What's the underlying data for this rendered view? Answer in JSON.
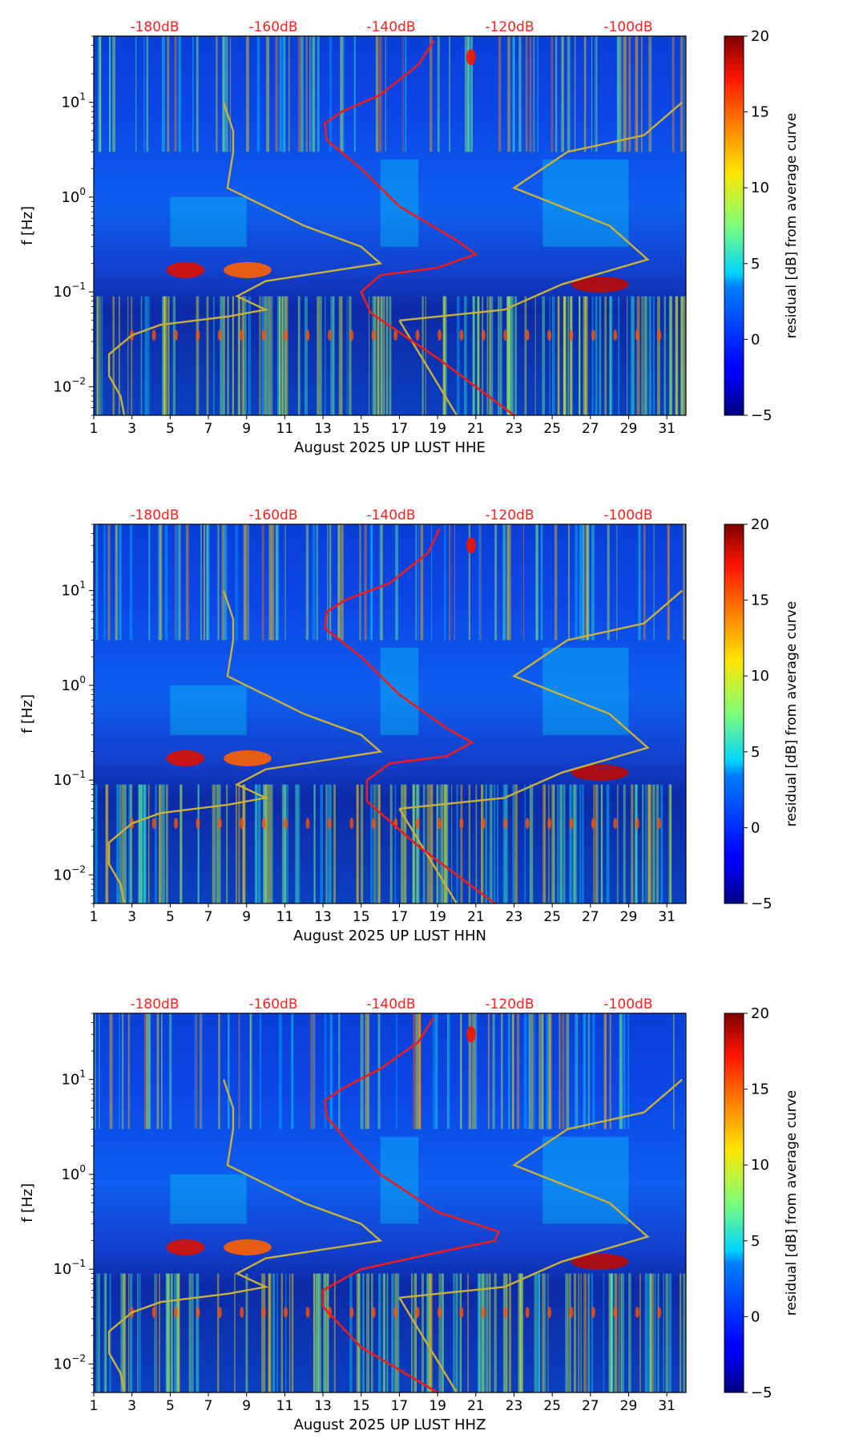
{
  "chart_data": [
    {
      "type": "heatmap",
      "xlabel": "August 2025 UP LUST  HHE",
      "ylabel": "f [Hz]",
      "x_ticks": [
        "1",
        "3",
        "5",
        "7",
        "9",
        "11",
        "13",
        "15",
        "17",
        "19",
        "21",
        "23",
        "25",
        "27",
        "29",
        "31"
      ],
      "xlim": [
        1,
        32
      ],
      "ylim": [
        0.005,
        50
      ],
      "y_ticks": [
        {
          "value": 0.01,
          "base": "10",
          "exp": "−2"
        },
        {
          "value": 0.1,
          "base": "10",
          "exp": "−1"
        },
        {
          "value": 1,
          "base": "10",
          "exp": "0"
        },
        {
          "value": 10,
          "base": "10",
          "exp": "1"
        }
      ],
      "top_ticks": [
        "-180dB",
        "-160dB",
        "-140dB",
        "-120dB",
        "-100dB"
      ],
      "colorbar": {
        "label": "residual [dB] from average curve",
        "min": -5,
        "max": 20,
        "ticks": [
          "20",
          "15",
          "10",
          "5",
          "0",
          "−5"
        ]
      },
      "red_curve": {
        "name": "average noise level (dB scale)",
        "points": [
          [
            23,
            0.005
          ],
          [
            19,
            0.02
          ],
          [
            15.5,
            0.06
          ],
          [
            15,
            0.1
          ],
          [
            16,
            0.15
          ],
          [
            19,
            0.18
          ],
          [
            21,
            0.25
          ],
          [
            20,
            0.35
          ],
          [
            17,
            0.8
          ],
          [
            15,
            2
          ],
          [
            13.2,
            4
          ],
          [
            13.1,
            6
          ],
          [
            14,
            8
          ],
          [
            16,
            12
          ],
          [
            18,
            25
          ],
          [
            18.8,
            45
          ]
        ]
      },
      "gold_curve": {
        "name": "reference curve",
        "points": [
          [
            2.6,
            0.005
          ],
          [
            2.4,
            0.008
          ],
          [
            1.8,
            0.013
          ],
          [
            1.8,
            0.022
          ],
          [
            3,
            0.035
          ],
          [
            4.5,
            0.045
          ],
          [
            8,
            0.055
          ],
          [
            10,
            0.065
          ],
          [
            8.5,
            0.09
          ],
          [
            10,
            0.13
          ],
          [
            16,
            0.2
          ],
          [
            15,
            0.3
          ],
          [
            12,
            0.5
          ],
          [
            8,
            1.25
          ],
          [
            8.3,
            3
          ],
          [
            8.3,
            5
          ],
          [
            7.8,
            10
          ],
          [
            17,
            0.05
          ],
          [
            22.5,
            0.065
          ],
          [
            25.5,
            0.12
          ],
          [
            30,
            0.22
          ],
          [
            28,
            0.5
          ],
          [
            23,
            1.25
          ],
          [
            25.8,
            3
          ],
          [
            29.8,
            4.5
          ],
          [
            31.8,
            10
          ],
          [
            20,
            0.005
          ]
        ]
      }
    },
    {
      "type": "heatmap",
      "xlabel": "August 2025 UP LUST  HHN",
      "ylabel": "f [Hz]",
      "x_ticks": [
        "1",
        "3",
        "5",
        "7",
        "9",
        "11",
        "13",
        "15",
        "17",
        "19",
        "21",
        "23",
        "25",
        "27",
        "29",
        "31"
      ],
      "xlim": [
        1,
        32
      ],
      "ylim": [
        0.005,
        50
      ],
      "y_ticks": [
        {
          "value": 0.01,
          "base": "10",
          "exp": "−2"
        },
        {
          "value": 0.1,
          "base": "10",
          "exp": "−1"
        },
        {
          "value": 1,
          "base": "10",
          "exp": "0"
        },
        {
          "value": 10,
          "base": "10",
          "exp": "1"
        }
      ],
      "top_ticks": [
        "-180dB",
        "-160dB",
        "-140dB",
        "-120dB",
        "-100dB"
      ],
      "colorbar": {
        "label": "residual [dB] from average curve",
        "min": -5,
        "max": 20,
        "ticks": [
          "20",
          "15",
          "10",
          "5",
          "0",
          "−5"
        ]
      },
      "red_curve": {
        "name": "average noise level (dB scale)",
        "points": [
          [
            22,
            0.005
          ],
          [
            18,
            0.02
          ],
          [
            15.3,
            0.06
          ],
          [
            15.3,
            0.1
          ],
          [
            16.5,
            0.15
          ],
          [
            19.5,
            0.18
          ],
          [
            20.8,
            0.25
          ],
          [
            19.5,
            0.35
          ],
          [
            17,
            0.8
          ],
          [
            15,
            2
          ],
          [
            13.1,
            4
          ],
          [
            13.2,
            6
          ],
          [
            14.2,
            8
          ],
          [
            16.5,
            12
          ],
          [
            18.5,
            25
          ],
          [
            19.1,
            45
          ]
        ]
      },
      "gold_curve": {
        "name": "reference curve",
        "points": [
          [
            2.6,
            0.005
          ],
          [
            2.4,
            0.008
          ],
          [
            1.8,
            0.013
          ],
          [
            1.8,
            0.022
          ],
          [
            3,
            0.035
          ],
          [
            4.5,
            0.045
          ],
          [
            8,
            0.055
          ],
          [
            10,
            0.065
          ],
          [
            8.5,
            0.09
          ],
          [
            10,
            0.13
          ],
          [
            16,
            0.2
          ],
          [
            15,
            0.3
          ],
          [
            12,
            0.5
          ],
          [
            8,
            1.25
          ],
          [
            8.3,
            3
          ],
          [
            8.3,
            5
          ],
          [
            7.8,
            10
          ],
          [
            17,
            0.05
          ],
          [
            22.5,
            0.065
          ],
          [
            25.5,
            0.12
          ],
          [
            30,
            0.22
          ],
          [
            28,
            0.5
          ],
          [
            23,
            1.25
          ],
          [
            25.8,
            3
          ],
          [
            29.8,
            4.5
          ],
          [
            31.8,
            10
          ],
          [
            20,
            0.005
          ]
        ]
      }
    },
    {
      "type": "heatmap",
      "xlabel": "August 2025 UP LUST  HHZ",
      "ylabel": "f [Hz]",
      "x_ticks": [
        "1",
        "3",
        "5",
        "7",
        "9",
        "11",
        "13",
        "15",
        "17",
        "19",
        "21",
        "23",
        "25",
        "27",
        "29",
        "31"
      ],
      "xlim": [
        1,
        32
      ],
      "ylim": [
        0.005,
        50
      ],
      "y_ticks": [
        {
          "value": 0.01,
          "base": "10",
          "exp": "−2"
        },
        {
          "value": 0.1,
          "base": "10",
          "exp": "−1"
        },
        {
          "value": 1,
          "base": "10",
          "exp": "0"
        },
        {
          "value": 10,
          "base": "10",
          "exp": "1"
        }
      ],
      "top_ticks": [
        "-180dB",
        "-160dB",
        "-140dB",
        "-120dB",
        "-100dB"
      ],
      "colorbar": {
        "label": "residual [dB] from average curve",
        "min": -5,
        "max": 20,
        "ticks": [
          "20",
          "15",
          "10",
          "5",
          "0",
          "−5"
        ]
      },
      "red_curve": {
        "name": "average noise level (dB scale)",
        "points": [
          [
            19,
            0.005
          ],
          [
            15,
            0.015
          ],
          [
            13,
            0.04
          ],
          [
            13,
            0.06
          ],
          [
            15,
            0.1
          ],
          [
            19,
            0.15
          ],
          [
            22,
            0.2
          ],
          [
            22.2,
            0.25
          ],
          [
            19,
            0.4
          ],
          [
            16,
            1
          ],
          [
            14.5,
            2
          ],
          [
            13.2,
            4
          ],
          [
            13.1,
            6
          ],
          [
            14,
            8
          ],
          [
            16,
            13
          ],
          [
            18,
            25
          ],
          [
            18.8,
            45
          ]
        ]
      },
      "gold_curve": {
        "name": "reference curve",
        "points": [
          [
            2.6,
            0.005
          ],
          [
            2.4,
            0.008
          ],
          [
            1.8,
            0.013
          ],
          [
            1.8,
            0.022
          ],
          [
            3,
            0.035
          ],
          [
            4.5,
            0.045
          ],
          [
            8,
            0.055
          ],
          [
            10,
            0.065
          ],
          [
            8.5,
            0.09
          ],
          [
            10,
            0.13
          ],
          [
            16,
            0.2
          ],
          [
            15,
            0.3
          ],
          [
            12,
            0.5
          ],
          [
            8,
            1.25
          ],
          [
            8.3,
            3
          ],
          [
            8.3,
            5
          ],
          [
            7.8,
            10
          ],
          [
            17,
            0.05
          ],
          [
            22.5,
            0.065
          ],
          [
            25.5,
            0.12
          ],
          [
            30,
            0.22
          ],
          [
            28,
            0.5
          ],
          [
            23,
            1.25
          ],
          [
            25.8,
            3
          ],
          [
            29.8,
            4.5
          ],
          [
            31.8,
            10
          ],
          [
            20,
            0.005
          ]
        ]
      }
    }
  ]
}
